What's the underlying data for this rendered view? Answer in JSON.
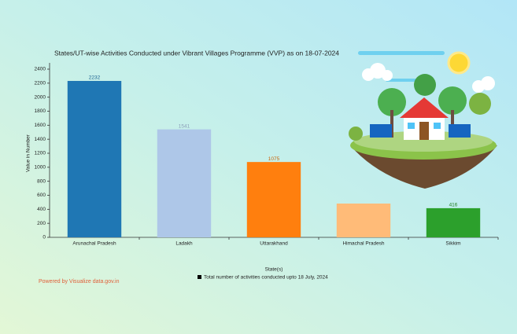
{
  "chart_data": {
    "type": "bar",
    "title": "States/UT-wise Activities Conducted under Vibrant Villages Programme (VVP) as on 18-07-2024",
    "y_label": "Value in Number",
    "x_label": "State(s)",
    "credit": "Powered by Visualize data.gov.in",
    "categories": [
      "Arunachal Pradesh",
      "Ladakh",
      "Uttarakhand",
      "Himachal Pradesh",
      "Sikkim"
    ],
    "series": [
      {
        "name": "Total number of activities conducted upto 18 July, 2024",
        "color": "#000000",
        "values": [
          2232,
          1541,
          1075,
          482,
          416
        ],
        "value_labels": [
          "2232",
          "1541",
          "1075",
          null,
          "416"
        ]
      }
    ],
    "colors": [
      "#1f77b4",
      "#aec7e8",
      "#ff7f0e",
      "#ffbb78",
      "#2ca02c"
    ],
    "ylim": [
      0,
      2400
    ],
    "yticks": [
      0,
      200,
      400,
      600,
      800,
      1000,
      1200,
      1400,
      1600,
      1800,
      2000,
      2200,
      2400
    ],
    "grid": false
  }
}
